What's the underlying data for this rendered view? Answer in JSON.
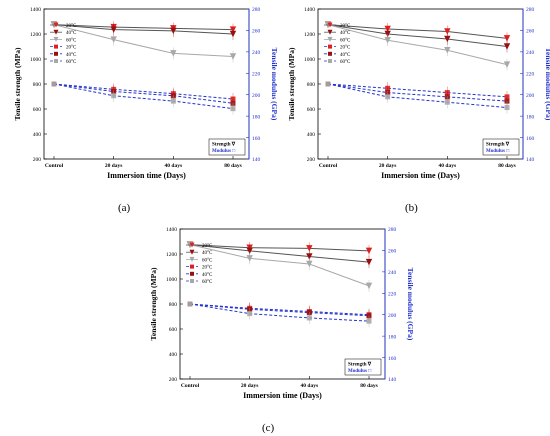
{
  "figure": {
    "panel_labels": [
      "(a)",
      "(b)",
      "(c)"
    ]
  },
  "colors": {
    "strength_axis": "#000000",
    "modulus_axis": "#2233cc",
    "temp_20": "#e02020",
    "temp_40": "#9a1010",
    "temp_60": "#a8a8a8",
    "dark_line": "#555555"
  },
  "chart_data": [
    {
      "panel": "(a)",
      "type": "line",
      "xlabel": "Immersion time (Days)",
      "ylabel": "Tensile strength (MPa)",
      "y2label": "Tensile modulus (GPa)",
      "categories": [
        "Control",
        "20 days",
        "40 days",
        "80 days"
      ],
      "ylim": [
        200,
        1400
      ],
      "yticks": [
        200,
        400,
        600,
        800,
        1000,
        1200,
        1400
      ],
      "y2lim": [
        140,
        280
      ],
      "y2ticks": [
        140,
        160,
        180,
        200,
        220,
        240,
        260,
        280
      ],
      "legend_group_labels": [
        "Strength ∇",
        "Modulus □"
      ],
      "legend": [
        "20°C",
        "40°C",
        "60°C",
        "20°C",
        "40°C",
        "60°C"
      ],
      "series": [
        {
          "name": "20°C",
          "axis": "left",
          "values": [
            1275,
            1255,
            1245,
            1235
          ]
        },
        {
          "name": "40°C",
          "axis": "left",
          "values": [
            1275,
            1235,
            1225,
            1200
          ]
        },
        {
          "name": "60°C",
          "axis": "left",
          "values": [
            1275,
            1155,
            1045,
            1020
          ]
        },
        {
          "name": "20°C",
          "axis": "right",
          "values": [
            210,
            205,
            201,
            196
          ]
        },
        {
          "name": "40°C",
          "axis": "right",
          "values": [
            210,
            203,
            199,
            192
          ]
        },
        {
          "name": "60°C",
          "axis": "right",
          "values": [
            210,
            199,
            194,
            187
          ]
        }
      ]
    },
    {
      "panel": "(b)",
      "type": "line",
      "xlabel": "Immersion time (Days)",
      "ylabel": "Tensile strength (MPa)",
      "y2label": "Tensile modulus (GPa)",
      "categories": [
        "Control",
        "20 days",
        "40 days",
        "80 days"
      ],
      "ylim": [
        200,
        1400
      ],
      "yticks": [
        200,
        400,
        600,
        800,
        1000,
        1200,
        1400
      ],
      "y2lim": [
        140,
        280
      ],
      "y2ticks": [
        140,
        160,
        180,
        200,
        220,
        240,
        260,
        280
      ],
      "legend_group_labels": [
        "Strength ∇",
        "Modulus □"
      ],
      "legend": [
        "20°C",
        "40°C",
        "60°C",
        "20°C",
        "40°C",
        "60°C"
      ],
      "series": [
        {
          "name": "20°C",
          "axis": "left",
          "values": [
            1275,
            1240,
            1220,
            1165
          ]
        },
        {
          "name": "40°C",
          "axis": "left",
          "values": [
            1275,
            1200,
            1160,
            1100
          ]
        },
        {
          "name": "60°C",
          "axis": "left",
          "values": [
            1275,
            1150,
            1070,
            955
          ]
        },
        {
          "name": "20°C",
          "axis": "right",
          "values": [
            210,
            206,
            202,
            198
          ]
        },
        {
          "name": "40°C",
          "axis": "right",
          "values": [
            210,
            202,
            198,
            194
          ]
        },
        {
          "name": "60°C",
          "axis": "right",
          "values": [
            210,
            198,
            193,
            188
          ]
        }
      ]
    },
    {
      "panel": "(c)",
      "type": "line",
      "xlabel": "Immersion time (Days)",
      "ylabel": "Tensile strength (MPa)",
      "y2label": "Tensile modulus (GPa)",
      "categories": [
        "Control",
        "20 days",
        "40 days",
        "80 days"
      ],
      "ylim": [
        200,
        1400
      ],
      "yticks": [
        200,
        400,
        600,
        800,
        1000,
        1200,
        1400
      ],
      "y2lim": [
        140,
        280
      ],
      "y2ticks": [
        140,
        160,
        180,
        200,
        220,
        240,
        260,
        280
      ],
      "legend_group_labels": [
        "Strength ∇",
        "Modulus □"
      ],
      "legend": [
        "20°C",
        "40°C",
        "60°C",
        "20°C",
        "40°C",
        "60°C"
      ],
      "series": [
        {
          "name": "20°C",
          "axis": "left",
          "values": [
            1275,
            1250,
            1245,
            1225
          ]
        },
        {
          "name": "40°C",
          "axis": "left",
          "values": [
            1275,
            1225,
            1180,
            1135
          ]
        },
        {
          "name": "60°C",
          "axis": "left",
          "values": [
            1275,
            1165,
            1120,
            945
          ]
        },
        {
          "name": "20°C",
          "axis": "right",
          "values": [
            210,
            206,
            203,
            200
          ]
        },
        {
          "name": "40°C",
          "axis": "right",
          "values": [
            210,
            205,
            202,
            199
          ]
        },
        {
          "name": "60°C",
          "axis": "right",
          "values": [
            210,
            201,
            197,
            194
          ]
        }
      ]
    }
  ]
}
